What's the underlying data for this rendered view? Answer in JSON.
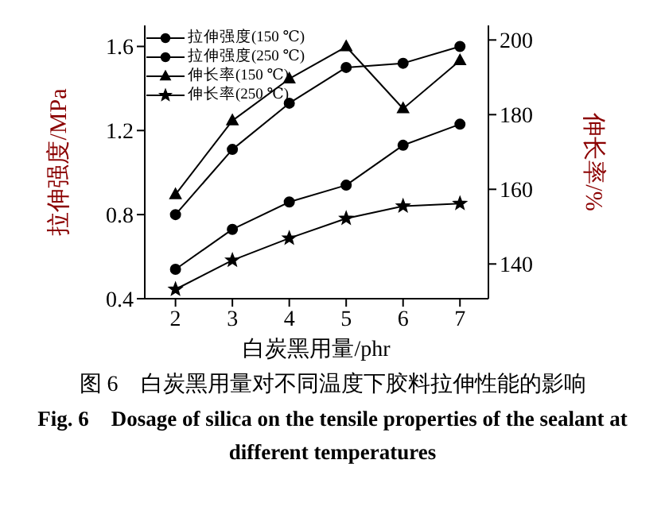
{
  "chart_data": {
    "type": "line",
    "x": [
      2,
      3,
      4,
      5,
      6,
      7
    ],
    "xlim": [
      1.46,
      7.5
    ],
    "xticks": [
      2,
      3,
      4,
      5,
      6,
      7
    ],
    "ylim": [
      0.4,
      1.7
    ],
    "yticks": [
      0.4,
      0.8,
      1.2,
      1.6
    ],
    "y2lim": [
      130.7,
      203.9
    ],
    "y2ticks": [
      140,
      160,
      180,
      200
    ],
    "xlabel": "白炭黑用量/phr",
    "ylabel": "拉伸强度/MPa",
    "y2label": "伸长率/%",
    "legend": "top left",
    "grid": false,
    "line_style": "solid",
    "series": [
      {
        "name": "拉伸强度(150 ℃)",
        "color": "#000000",
        "marker": "circle",
        "values": [
          0.8,
          1.11,
          1.33,
          1.5,
          1.52,
          1.6
        ]
      },
      {
        "name": "拉伸强度(250 ℃)",
        "color": "#000000",
        "marker": "circle",
        "values": [
          0.54,
          0.73,
          0.86,
          0.94,
          1.13,
          1.23
        ]
      },
      {
        "name": "伸长率(150 ℃)",
        "color": "#000000",
        "marker": "triangle",
        "axis": "y2",
        "values": [
          158.6,
          178.4,
          189.6,
          198.2,
          181.6,
          194.5
        ]
      },
      {
        "name": "伸长率(250 ℃)",
        "color": "#000000",
        "marker": "star",
        "axis": "y2",
        "values": [
          133.2,
          141.0,
          146.9,
          152.2,
          155.5,
          156.2
        ]
      }
    ],
    "annotations": [
      "图 6　白炭黑用量对不同温度下胶料拉伸性能的影响",
      "Fig. 6　Dosage of silica on the tensile properties of the sealant at different temperatures"
    ]
  }
}
